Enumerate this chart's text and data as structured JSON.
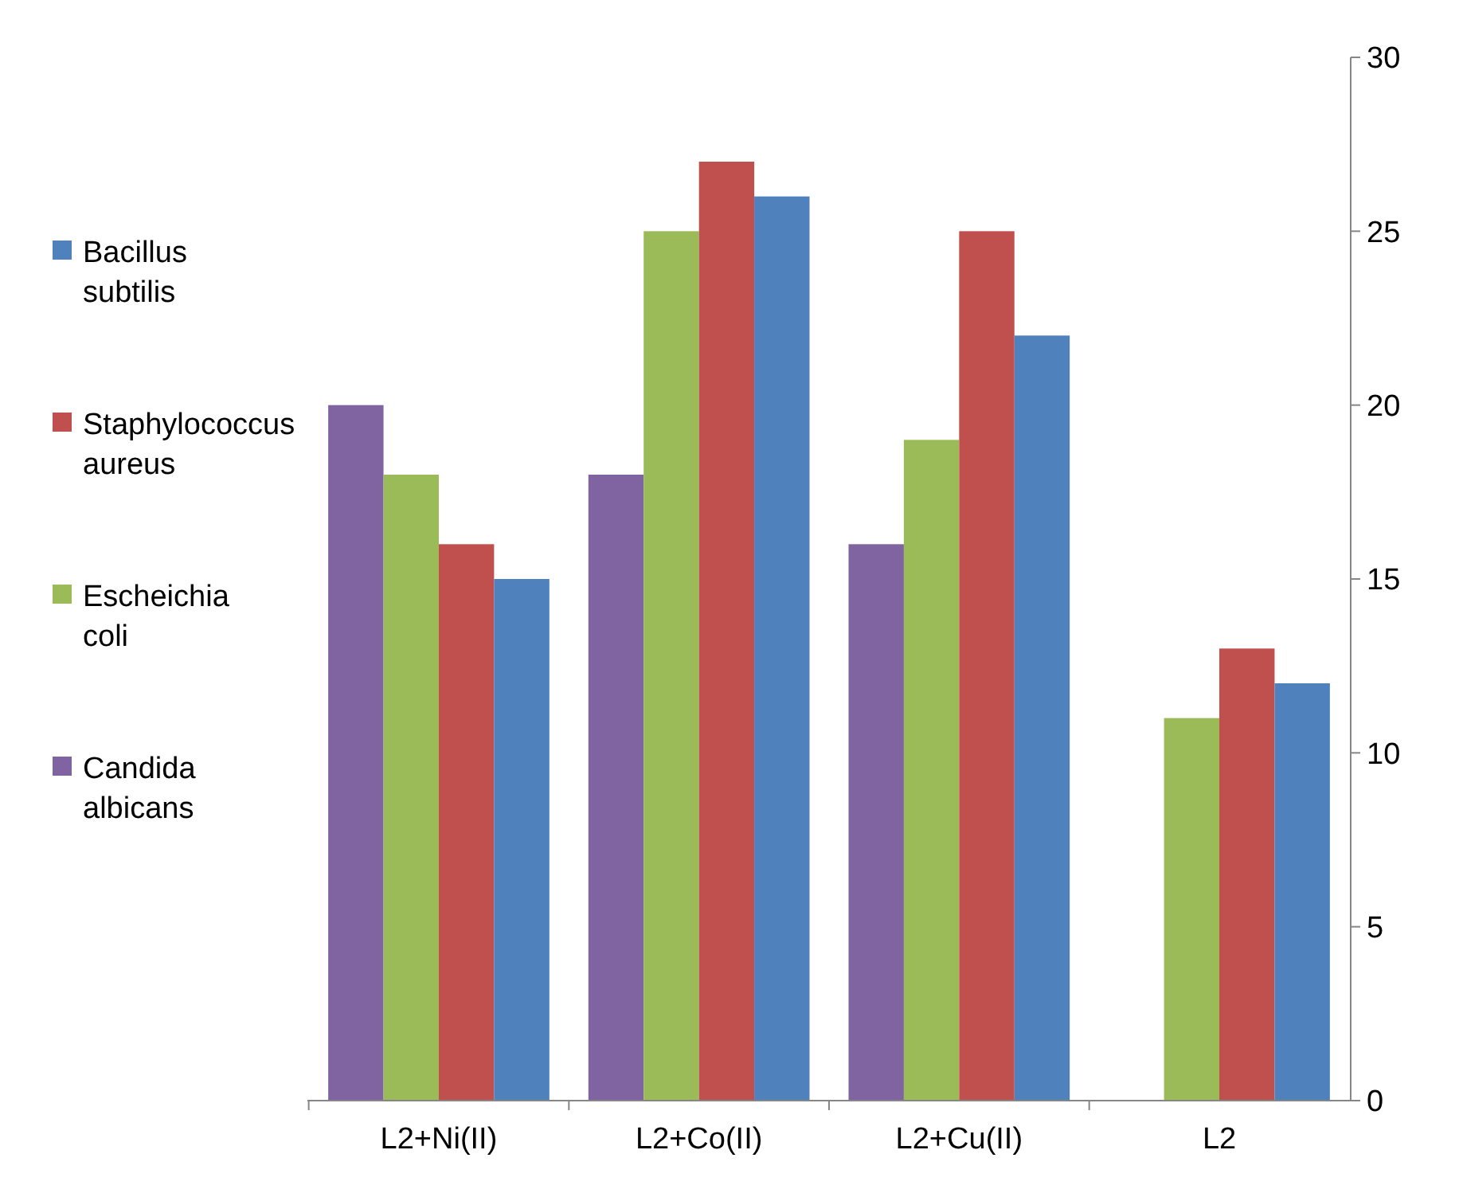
{
  "chart_data": {
    "type": "bar",
    "categories": [
      "L2+Ni(II)",
      "L2+Co(II)",
      "L2+Cu(II)",
      "L2"
    ],
    "series": [
      {
        "name": "Candida albicans",
        "color": "#8064a2",
        "values": [
          20,
          18,
          16,
          null
        ]
      },
      {
        "name": "Escheichia coli",
        "color": "#9bbb59",
        "values": [
          18,
          25,
          19,
          11
        ]
      },
      {
        "name": "Staphylococcus aureus",
        "color": "#c0504d",
        "values": [
          16,
          27,
          25,
          13
        ]
      },
      {
        "name": "Bacillus subtilis",
        "color": "#4f81bd",
        "values": [
          15,
          26,
          22,
          12
        ]
      }
    ],
    "ylim": [
      0,
      30
    ],
    "yticks": [
      0,
      5,
      10,
      15,
      20,
      25,
      30
    ],
    "legend": "left",
    "grid": false
  }
}
